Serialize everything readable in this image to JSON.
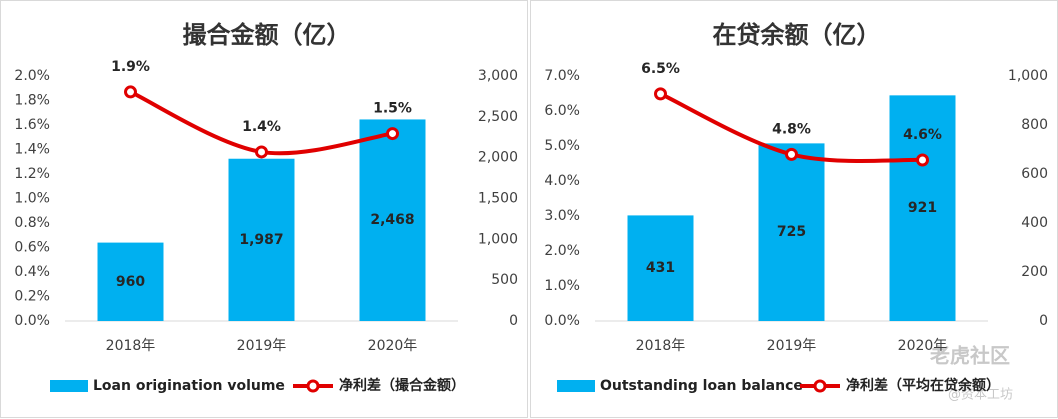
{
  "chart_data": [
    {
      "type": "bar_line",
      "title": "撮合金额（亿）",
      "categories": [
        "2018年",
        "2019年",
        "2020年"
      ],
      "series": [
        {
          "name": "Loan origination volume",
          "type": "bar",
          "axis": "y2",
          "color": "#00b0f0",
          "values": [
            960,
            1987,
            2468
          ],
          "value_labels": [
            "960",
            "1,987",
            "2,468"
          ]
        },
        {
          "name": "净利差（撮合金额）",
          "type": "line",
          "color": "#e00000",
          "values": [
            1.87,
            1.38,
            1.53
          ],
          "value_labels": [
            "1.9%",
            "1.4%",
            "1.5%"
          ]
        }
      ],
      "ylim": [
        0,
        2
      ],
      "yticks": [
        {
          "value": 0,
          "label": "0.0%"
        },
        {
          "value": 0.2,
          "label": "0.2%"
        },
        {
          "value": 0.4,
          "label": "0.4%"
        },
        {
          "value": 0.6,
          "label": "0.6%"
        },
        {
          "value": 0.8,
          "label": "0.8%"
        },
        {
          "value": 1.0,
          "label": "1.0%"
        },
        {
          "value": 1.2,
          "label": "1.2%"
        },
        {
          "value": 1.4,
          "label": "1.4%"
        },
        {
          "value": 1.6,
          "label": "1.6%"
        },
        {
          "value": 1.8,
          "label": "1.8%"
        },
        {
          "value": 2.0,
          "label": "2.0%"
        }
      ],
      "y2lim": [
        0,
        3000
      ],
      "y2ticks": [
        0,
        500,
        {
          "value": 1000,
          "label": "1,000"
        },
        {
          "value": 1500,
          "label": "1,500"
        },
        {
          "value": 2000,
          "label": "2,000"
        },
        {
          "value": 2500,
          "label": "2,500"
        },
        {
          "value": 3000,
          "label": "3,000"
        }
      ],
      "legend": "bottom"
    },
    {
      "type": "bar_line",
      "title": "在贷余额（亿）",
      "categories": [
        "2018年",
        "2019年",
        "2020年"
      ],
      "series": [
        {
          "name": "Outstanding loan balance",
          "type": "bar",
          "axis": "y2",
          "color": "#00b0f0",
          "values": [
            431,
            725,
            921
          ]
        },
        {
          "name": "净利差（平均在贷余额）",
          "type": "line",
          "color": "#e00000",
          "values": [
            6.49,
            4.76,
            4.6
          ],
          "value_labels": [
            "6.5%",
            "4.8%",
            "4.6%"
          ]
        }
      ],
      "ylim": [
        0,
        7
      ],
      "yticks": [
        {
          "value": 0,
          "label": "0.0%"
        },
        {
          "value": 1,
          "label": "1.0%"
        },
        {
          "value": 2,
          "label": "2.0%"
        },
        {
          "value": 3,
          "label": "3.0%"
        },
        {
          "value": 4,
          "label": "4.0%"
        },
        {
          "value": 5,
          "label": "5.0%"
        },
        {
          "value": 6,
          "label": "6.0%"
        },
        {
          "value": 7,
          "label": "7.0%"
        }
      ],
      "y2lim": [
        0,
        1000
      ],
      "y2ticks": [
        0,
        200,
        400,
        600,
        800,
        {
          "value": 1000,
          "label": "1,000"
        }
      ],
      "legend": "bottom"
    }
  ],
  "watermark": [
    "老虎社区",
    "@资本工坊"
  ]
}
